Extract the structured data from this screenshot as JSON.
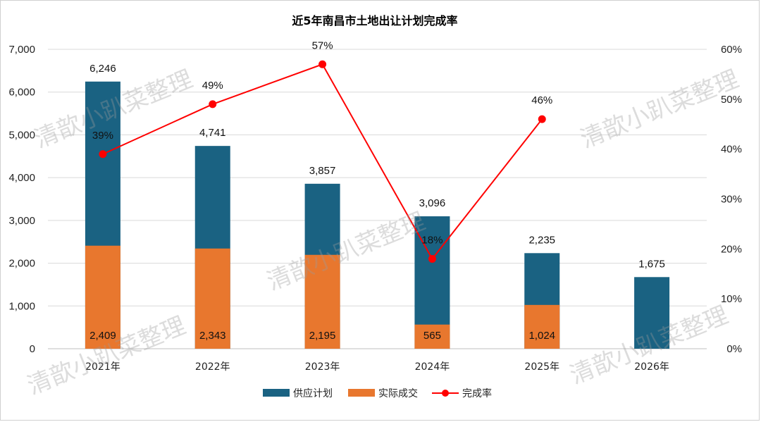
{
  "chart_data": {
    "type": "bar",
    "title": "近5年南昌市土地出让计划完成率",
    "categories": [
      "2021年",
      "2022年",
      "2023年",
      "2024年",
      "2025年",
      "2026年"
    ],
    "series": [
      {
        "name": "供应计划",
        "kind": "bar",
        "color": "#1a6282",
        "values": [
          6246,
          4741,
          3857,
          3096,
          2235,
          1675
        ],
        "labels": [
          "6,246",
          "4,741",
          "3,857",
          "3,096",
          "2,235",
          "1,675"
        ]
      },
      {
        "name": "实际成交",
        "kind": "bar",
        "color": "#e8772e",
        "values": [
          2409,
          2343,
          2195,
          565,
          1024,
          null
        ],
        "labels": [
          "2,409",
          "2,343",
          "2,195",
          "565",
          "1,024",
          ""
        ]
      },
      {
        "name": "完成率",
        "kind": "line",
        "axis": "right",
        "color": "#ff0000",
        "values": [
          0.39,
          0.49,
          0.57,
          0.18,
          0.46,
          null
        ],
        "labels": [
          "39%",
          "49%",
          "57%",
          "18%",
          "46%",
          ""
        ]
      }
    ],
    "y_left": {
      "min": 0,
      "max": 7000,
      "ticks": [
        "0",
        "1,000",
        "2,000",
        "3,000",
        "4,000",
        "5,000",
        "6,000",
        "7,000"
      ]
    },
    "y_right": {
      "min": 0,
      "max": 0.6,
      "ticks": [
        "0%",
        "10%",
        "20%",
        "30%",
        "40%",
        "50%",
        "60%"
      ]
    },
    "grid": true,
    "legend_position": "bottom"
  },
  "watermark": "清歆小趴菜整理"
}
